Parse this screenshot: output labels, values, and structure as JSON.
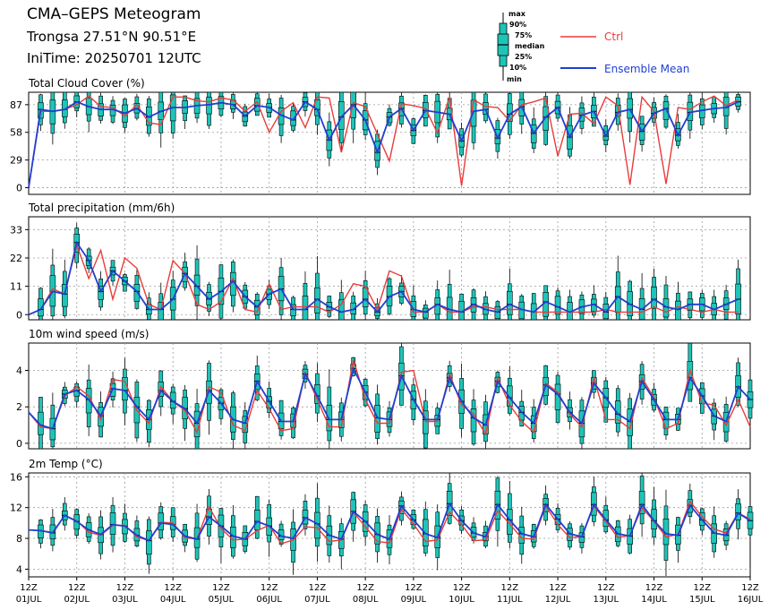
{
  "header": {
    "title": "CMA–GEPS Meteogram",
    "location": "Trongsa 27.51°N 90.51°E",
    "init_time": "IniTime: 20250701 12UTC"
  },
  "box_legend": {
    "labels": [
      "max",
      "90%",
      "75%",
      "median",
      "25%",
      "10%",
      "min"
    ]
  },
  "chart_data": [
    {
      "type": "line",
      "title": "Total Cloud Cover (%)",
      "ylim": [
        -7,
        100
      ],
      "yticks": [
        0,
        29,
        58,
        87
      ],
      "series": [
        {
          "name": "Ctrl",
          "color": "#e83c3c",
          "values": [
            0,
            80,
            80,
            82,
            87,
            96,
            85,
            84,
            75,
            87,
            68,
            66,
            95,
            95,
            91,
            90,
            94,
            92,
            80,
            90,
            58,
            80,
            89,
            63,
            95,
            94,
            37,
            89,
            85,
            56,
            28,
            88,
            86,
            83,
            57,
            95,
            2,
            92,
            85,
            84,
            70,
            87,
            90,
            94,
            33,
            77,
            78,
            67,
            95,
            86,
            3,
            95,
            80,
            4,
            84,
            82,
            90,
            96,
            86,
            92
          ]
        },
        {
          "name": "Ensemble Mean",
          "color": "#1f3fd1",
          "values": [
            0,
            82,
            80,
            82,
            90,
            85,
            82,
            82,
            78,
            83,
            74,
            80,
            84,
            84,
            86,
            87,
            89,
            87,
            75,
            86,
            84,
            76,
            71,
            90,
            82,
            50,
            74,
            87,
            71,
            37,
            74,
            83,
            60,
            81,
            79,
            77,
            49,
            80,
            82,
            52,
            77,
            85,
            57,
            74,
            84,
            53,
            76,
            80,
            54,
            79,
            82,
            59,
            78,
            83,
            55,
            79,
            81,
            83,
            84,
            90
          ]
        }
      ]
    },
    {
      "type": "line",
      "title": "Total precipitation (mm/6h)",
      "ylim": [
        -2,
        38
      ],
      "yticks": [
        0,
        11,
        22,
        33
      ],
      "series": [
        {
          "name": "Ctrl",
          "color": "#e83c3c",
          "values": [
            0,
            2,
            10,
            8,
            27,
            14,
            25,
            6,
            22,
            18,
            4,
            2,
            21,
            16,
            4,
            2,
            5,
            14,
            2,
            1,
            12,
            2,
            3,
            3,
            3,
            1,
            4,
            12,
            11,
            2,
            17,
            15,
            1,
            1,
            4,
            1,
            1,
            3,
            3,
            2,
            2,
            2,
            1,
            1,
            1,
            1,
            1,
            1,
            2,
            1,
            1,
            1,
            3,
            1,
            3,
            2,
            1,
            2,
            1,
            1
          ]
        },
        {
          "name": "Ensemble Mean",
          "color": "#1f3fd1",
          "values": [
            0,
            2,
            9,
            8,
            28,
            21,
            9,
            17,
            13,
            9,
            2,
            2,
            6,
            16,
            11,
            6,
            9,
            13,
            7,
            3,
            8,
            10,
            2,
            2,
            6,
            3,
            1,
            2,
            6,
            1,
            7,
            9,
            2,
            1,
            4,
            2,
            1,
            4,
            2,
            1,
            4,
            2,
            1,
            5,
            3,
            1,
            3,
            4,
            1,
            7,
            4,
            2,
            6,
            3,
            2,
            4,
            4,
            2,
            4,
            6
          ]
        }
      ]
    },
    {
      "type": "line",
      "title": "10m wind speed (m/s)",
      "ylim": [
        -0.3,
        5.5
      ],
      "yticks": [
        0,
        2,
        4
      ],
      "series": [
        {
          "name": "Ctrl",
          "color": "#e83c3c",
          "values": [
            1.7,
            0.9,
            0.8,
            2.6,
            3.1,
            2.6,
            1.3,
            3.5,
            3.4,
            1.8,
            1.1,
            3.1,
            2.3,
            1.8,
            0.6,
            3.1,
            2.8,
            1.0,
            0.7,
            2.9,
            1.9,
            0.7,
            0.8,
            3.9,
            2.4,
            0.9,
            0.9,
            4.6,
            2.4,
            1.1,
            1.1,
            3.9,
            4.0,
            1.2,
            1.2,
            3.8,
            2.1,
            1.6,
            0.5,
            3.6,
            2.1,
            1.2,
            0.6,
            3.3,
            2.8,
            1.6,
            0.9,
            3.6,
            1.3,
            1.3,
            0.8,
            3.6,
            2.5,
            0.8,
            1.1,
            4.0,
            2.2,
            2.1,
            1.0,
            2.4,
            0.9
          ]
        },
        {
          "name": "Ensemble Mean",
          "color": "#1f3fd1",
          "values": [
            1.7,
            1.0,
            0.8,
            2.7,
            2.9,
            2.4,
            1.5,
            3.0,
            2.9,
            2.0,
            1.3,
            2.9,
            2.3,
            1.9,
            1.1,
            2.9,
            2.2,
            1.3,
            1.1,
            3.4,
            2.3,
            1.2,
            1.2,
            3.8,
            2.6,
            1.3,
            1.3,
            4.1,
            2.8,
            1.4,
            1.3,
            3.7,
            2.4,
            1.3,
            1.3,
            3.6,
            2.3,
            1.4,
            1.0,
            3.4,
            2.5,
            1.7,
            1.1,
            3.2,
            2.7,
            1.7,
            1.1,
            3.3,
            2.5,
            1.6,
            1.2,
            3.4,
            2.4,
            1.3,
            1.3,
            3.6,
            2.6,
            1.5,
            1.2,
            3.1,
            2.4
          ]
        }
      ]
    },
    {
      "type": "line",
      "title": "2m Temp (°C)",
      "ylim": [
        3,
        16.5
      ],
      "yticks": [
        4,
        8,
        12,
        16
      ],
      "series": [
        {
          "name": "Ctrl",
          "color": "#e83c3c",
          "values": [
            9.1,
            9.0,
            8.8,
            11.0,
            10.3,
            8.8,
            8.4,
            9.7,
            9.7,
            8.2,
            7.7,
            10.1,
            10.0,
            8.1,
            7.9,
            12.1,
            9.3,
            7.8,
            7.9,
            9.0,
            9.7,
            7.3,
            7.8,
            9.5,
            9.4,
            7.6,
            7.8,
            11.4,
            9.5,
            7.6,
            7.4,
            11.8,
            9.9,
            7.6,
            7.8,
            11.4,
            9.8,
            7.7,
            7.8,
            11.6,
            9.9,
            8.0,
            7.9,
            12.2,
            9.8,
            8.1,
            8.2,
            12.2,
            10.2,
            8.1,
            8.4,
            12.0,
            10.2,
            8.2,
            8.5,
            12.8,
            10.8,
            9.2,
            8.7,
            11.3,
            10.5
          ]
        },
        {
          "name": "Ensemble Mean",
          "color": "#1f3fd1",
          "values": [
            9.1,
            9.0,
            8.7,
            11.0,
            10.2,
            9.1,
            8.5,
            9.8,
            9.6,
            8.4,
            7.7,
            10.0,
            9.8,
            8.3,
            7.9,
            10.8,
            9.6,
            8.3,
            7.9,
            10.2,
            9.6,
            8.3,
            8.0,
            10.7,
            9.9,
            8.4,
            7.9,
            11.5,
            10.2,
            8.5,
            7.9,
            12.2,
            10.4,
            8.6,
            8.1,
            12.5,
            10.3,
            8.7,
            8.2,
            12.4,
            10.4,
            8.6,
            8.2,
            12.4,
            10.5,
            8.6,
            8.2,
            12.4,
            10.4,
            8.6,
            8.3,
            12.4,
            10.3,
            8.6,
            8.4,
            12.3,
            10.4,
            8.7,
            8.4,
            11.3,
            10.3
          ]
        }
      ]
    }
  ],
  "x_axis": {
    "tick_hour": "12Z",
    "dates": [
      "01JUL",
      "02JUL",
      "03JUL",
      "04JUL",
      "05JUL",
      "06JUL",
      "07JUL",
      "08JUL",
      "09JUL",
      "10JUL",
      "11JUL",
      "12JUL",
      "13JUL",
      "14JUL",
      "15JUL",
      "16JUL"
    ]
  },
  "colors": {
    "ctrl": "#e83c3c",
    "mean": "#1f3fd1",
    "box": "#1fc4b8",
    "grid": "#9a9a9a"
  }
}
